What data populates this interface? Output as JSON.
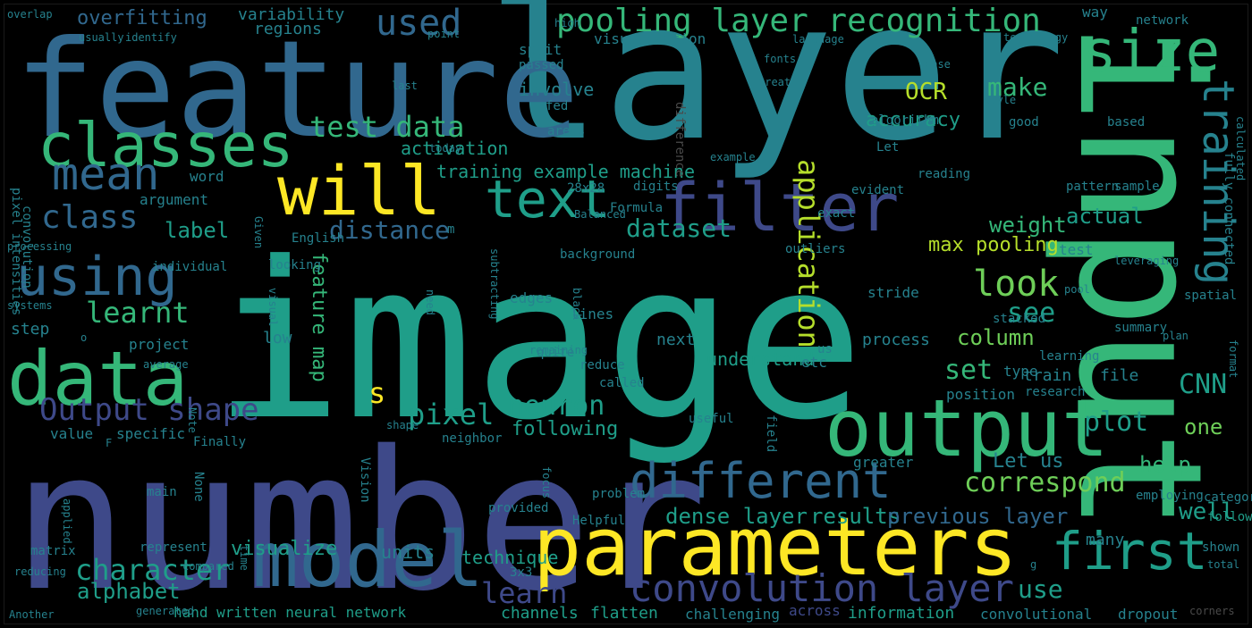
{
  "palette": {
    "background": "#000000",
    "yellow": "#fde725",
    "lime": "#b5de2b",
    "green": "#6ece58",
    "mint": "#35b779",
    "teal_light": "#1f9e89",
    "teal": "#26828e",
    "blue": "#31688e",
    "indigo": "#3e4989",
    "purple": "#482878",
    "gray": "#4a4a4a"
  },
  "words": [
    {
      "text": "image",
      "color": "teal_light"
    },
    {
      "text": "number",
      "color": "indigo"
    },
    {
      "text": "layer",
      "color": "teal"
    },
    {
      "text": "feature",
      "color": "blue"
    },
    {
      "text": "input",
      "color": "mint"
    },
    {
      "text": "parameters",
      "color": "yellow"
    },
    {
      "text": "output",
      "color": "mint"
    },
    {
      "text": "model",
      "color": "blue"
    },
    {
      "text": "classes",
      "color": "mint"
    },
    {
      "text": "data",
      "color": "mint"
    },
    {
      "text": "will",
      "color": "yellow"
    },
    {
      "text": "filter",
      "color": "indigo"
    },
    {
      "text": "using",
      "color": "blue"
    },
    {
      "text": "size",
      "color": "mint"
    },
    {
      "text": "text",
      "color": "teal_light"
    },
    {
      "text": "different",
      "color": "blue"
    },
    {
      "text": "first",
      "color": "teal_light"
    },
    {
      "text": "convolution layer",
      "color": "indigo"
    },
    {
      "text": "training",
      "color": "teal"
    },
    {
      "text": "pooling layer recognition",
      "color": "mint"
    },
    {
      "text": "mean",
      "color": "blue"
    },
    {
      "text": "used",
      "color": "blue"
    },
    {
      "text": "Output shape",
      "color": "indigo"
    },
    {
      "text": "class",
      "color": "blue"
    },
    {
      "text": "learnt",
      "color": "mint"
    },
    {
      "text": "character",
      "color": "teal_light"
    },
    {
      "text": "alphabet",
      "color": "teal_light"
    },
    {
      "text": "look",
      "color": "green"
    },
    {
      "text": "test data",
      "color": "mint"
    },
    {
      "text": "dataset",
      "color": "teal_light"
    },
    {
      "text": "distance",
      "color": "blue"
    },
    {
      "text": "neuron",
      "color": "teal_light"
    },
    {
      "text": "pixel",
      "color": "teal_light"
    },
    {
      "text": "correspond",
      "color": "green"
    },
    {
      "text": "application",
      "color": "lime"
    },
    {
      "text": "CNN",
      "color": "teal_light"
    },
    {
      "text": "s",
      "color": "yellow"
    },
    {
      "text": "label",
      "color": "teal_light"
    },
    {
      "text": "make",
      "color": "mint"
    },
    {
      "text": "OCR",
      "color": "lime"
    },
    {
      "text": "see",
      "color": "teal_light"
    },
    {
      "text": "column",
      "color": "green"
    },
    {
      "text": "set",
      "color": "mint"
    },
    {
      "text": "help",
      "color": "mint"
    },
    {
      "text": "plot",
      "color": "teal_light"
    },
    {
      "text": "one",
      "color": "green"
    },
    {
      "text": "use",
      "color": "teal_light"
    },
    {
      "text": "learn",
      "color": "indigo"
    },
    {
      "text": "weight",
      "color": "mint"
    },
    {
      "text": "actual",
      "color": "teal_light"
    },
    {
      "text": "accuracy",
      "color": "teal_light"
    },
    {
      "text": "max pooling",
      "color": "lime"
    },
    {
      "text": "feature map",
      "color": "mint"
    },
    {
      "text": "overfitting",
      "color": "blue"
    },
    {
      "text": "variability",
      "color": "teal"
    },
    {
      "text": "regions",
      "color": "teal"
    },
    {
      "text": "involve",
      "color": "teal"
    },
    {
      "text": "activation",
      "color": "teal_light"
    },
    {
      "text": "training example machine",
      "color": "teal_light"
    },
    {
      "text": "digits",
      "color": "teal"
    },
    {
      "text": "28x28",
      "color": "teal"
    },
    {
      "text": "word",
      "color": "teal"
    },
    {
      "text": "argument",
      "color": "teal"
    },
    {
      "text": "individual",
      "color": "teal"
    },
    {
      "text": "project",
      "color": "teal"
    },
    {
      "text": "average",
      "color": "teal"
    },
    {
      "text": "step",
      "color": "teal"
    },
    {
      "text": "low",
      "color": "teal"
    },
    {
      "text": "next",
      "color": "teal"
    },
    {
      "text": "process",
      "color": "teal"
    },
    {
      "text": "understand",
      "color": "teal_light"
    },
    {
      "text": "etc",
      "color": "teal"
    },
    {
      "text": "train",
      "color": "teal"
    },
    {
      "text": "file",
      "color": "teal"
    },
    {
      "text": "type",
      "color": "teal"
    },
    {
      "text": "position",
      "color": "teal"
    },
    {
      "text": "research",
      "color": "teal"
    },
    {
      "text": "following",
      "color": "teal_light"
    },
    {
      "text": "neighbor",
      "color": "teal"
    },
    {
      "text": "value",
      "color": "teal"
    },
    {
      "text": "specific",
      "color": "teal"
    },
    {
      "text": "Finally",
      "color": "teal"
    },
    {
      "text": "dense layer",
      "color": "teal_light"
    },
    {
      "text": "results",
      "color": "teal_light"
    },
    {
      "text": "previous layer",
      "color": "blue"
    },
    {
      "text": "Let us",
      "color": "teal"
    },
    {
      "text": "greater",
      "color": "teal"
    },
    {
      "text": "well",
      "color": "teal_light"
    },
    {
      "text": "many",
      "color": "teal"
    },
    {
      "text": "visualize",
      "color": "teal_light"
    },
    {
      "text": "units",
      "color": "teal"
    },
    {
      "text": "technique",
      "color": "teal_light"
    },
    {
      "text": "hand written neural network",
      "color": "teal_light"
    },
    {
      "text": "channels",
      "color": "teal_light"
    },
    {
      "text": "flatten",
      "color": "teal_light"
    },
    {
      "text": "challenging",
      "color": "teal"
    },
    {
      "text": "across",
      "color": "indigo"
    },
    {
      "text": "information",
      "color": "teal_light"
    },
    {
      "text": "convolutional",
      "color": "teal"
    },
    {
      "text": "dropout",
      "color": "teal"
    },
    {
      "text": "corners",
      "color": "gray"
    },
    {
      "text": "pixel intensities",
      "color": "teal"
    },
    {
      "text": "convolution",
      "color": "teal"
    },
    {
      "text": "processing",
      "color": "teal"
    },
    {
      "text": "systems",
      "color": "teal"
    },
    {
      "text": "fully connected",
      "color": "teal"
    },
    {
      "text": "calculated",
      "color": "teal"
    },
    {
      "text": "format",
      "color": "teal"
    },
    {
      "text": "category",
      "color": "teal"
    },
    {
      "text": "followed",
      "color": "teal_light"
    },
    {
      "text": "shown",
      "color": "teal"
    },
    {
      "text": "total",
      "color": "teal"
    },
    {
      "text": "employing",
      "color": "teal"
    },
    {
      "text": "summary",
      "color": "teal"
    },
    {
      "text": "plan",
      "color": "teal"
    },
    {
      "text": "spatial",
      "color": "teal"
    },
    {
      "text": "pool",
      "color": "teal"
    },
    {
      "text": "stacked",
      "color": "teal"
    },
    {
      "text": "learning",
      "color": "teal"
    },
    {
      "text": "leveraging",
      "color": "teal"
    },
    {
      "text": "pattern",
      "color": "teal"
    },
    {
      "text": "sample",
      "color": "teal"
    },
    {
      "text": "evident",
      "color": "teal"
    },
    {
      "text": "reading",
      "color": "teal"
    },
    {
      "text": "exact",
      "color": "teal"
    },
    {
      "text": "outliers",
      "color": "teal"
    },
    {
      "text": "test",
      "color": "teal"
    },
    {
      "text": "overlap",
      "color": "teal"
    },
    {
      "text": "usually",
      "color": "teal"
    },
    {
      "text": "identify",
      "color": "teal"
    },
    {
      "text": "point",
      "color": "teal"
    },
    {
      "text": "high",
      "color": "teal"
    },
    {
      "text": "way",
      "color": "teal"
    },
    {
      "text": "network",
      "color": "teal"
    },
    {
      "text": "visualization",
      "color": "teal"
    },
    {
      "text": "language",
      "color": "teal"
    },
    {
      "text": "technology",
      "color": "teal"
    },
    {
      "text": "split",
      "color": "teal"
    },
    {
      "text": "passed",
      "color": "teal"
    },
    {
      "text": "fonts",
      "color": "teal"
    },
    {
      "text": "case",
      "color": "teal"
    },
    {
      "text": "last",
      "color": "teal"
    },
    {
      "text": "great",
      "color": "teal"
    },
    {
      "text": "fact",
      "color": "teal"
    },
    {
      "text": "style",
      "color": "teal"
    },
    {
      "text": "fed",
      "color": "teal"
    },
    {
      "text": "algorithm",
      "color": "teal"
    },
    {
      "text": "based",
      "color": "teal"
    },
    {
      "text": "areas",
      "color": "teal"
    },
    {
      "text": "good",
      "color": "teal"
    },
    {
      "text": "today",
      "color": "teal"
    },
    {
      "text": "Let",
      "color": "teal"
    },
    {
      "text": "example",
      "color": "teal"
    },
    {
      "text": "difference",
      "color": "gray"
    },
    {
      "text": "Balanced",
      "color": "teal"
    },
    {
      "text": "Formula",
      "color": "teal"
    },
    {
      "text": "Given",
      "color": "teal"
    },
    {
      "text": "English",
      "color": "teal"
    },
    {
      "text": "looking",
      "color": "teal"
    },
    {
      "text": "visual",
      "color": "teal"
    },
    {
      "text": "remaining",
      "color": "teal"
    },
    {
      "text": "background",
      "color": "teal"
    },
    {
      "text": "subtracting",
      "color": "teal"
    },
    {
      "text": "need",
      "color": "teal"
    },
    {
      "text": "edges",
      "color": "teal"
    },
    {
      "text": "black",
      "color": "teal"
    },
    {
      "text": "lines",
      "color": "teal"
    },
    {
      "text": "quite",
      "color": "teal"
    },
    {
      "text": "reduce",
      "color": "teal"
    },
    {
      "text": "called",
      "color": "teal"
    },
    {
      "text": "useful",
      "color": "teal"
    },
    {
      "text": "field",
      "color": "teal"
    },
    {
      "text": "us",
      "color": "teal"
    },
    {
      "text": "stride",
      "color": "teal"
    },
    {
      "text": "Note",
      "color": "teal"
    },
    {
      "text": "shape",
      "color": "teal"
    },
    {
      "text": "focus",
      "color": "teal"
    },
    {
      "text": "problem",
      "color": "teal"
    },
    {
      "text": "provided",
      "color": "teal"
    },
    {
      "text": "Helpful",
      "color": "teal"
    },
    {
      "text": "Vision",
      "color": "teal"
    },
    {
      "text": "None",
      "color": "teal"
    },
    {
      "text": "main",
      "color": "teal"
    },
    {
      "text": "applied",
      "color": "teal"
    },
    {
      "text": "matrix",
      "color": "teal"
    },
    {
      "text": "represent",
      "color": "teal"
    },
    {
      "text": "time",
      "color": "teal"
    },
    {
      "text": "reducing",
      "color": "teal"
    },
    {
      "text": "compared",
      "color": "teal"
    },
    {
      "text": "3x3",
      "color": "teal"
    },
    {
      "text": "generated",
      "color": "teal"
    },
    {
      "text": "Another",
      "color": "teal"
    },
    {
      "text": "g",
      "color": "teal"
    },
    {
      "text": "o",
      "color": "teal"
    },
    {
      "text": "F",
      "color": "teal"
    },
    {
      "text": "m",
      "color": "teal"
    }
  ]
}
